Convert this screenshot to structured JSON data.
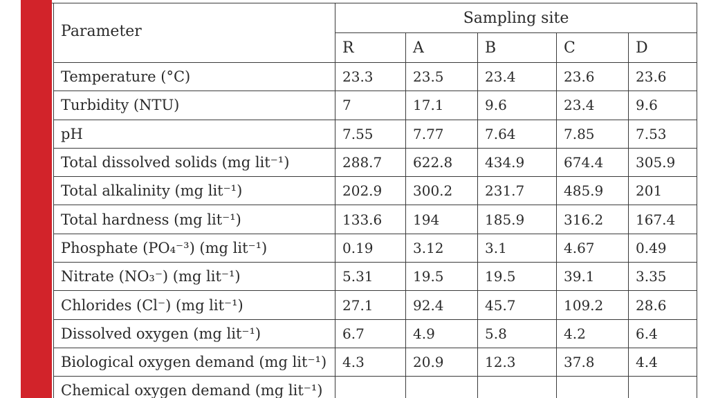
{
  "table": {
    "param_header": "Parameter",
    "sampling_header": "Sampling site",
    "sites": [
      "R",
      "A",
      "B",
      "C",
      "D"
    ],
    "rows": [
      {
        "name": "Temperature (°C)",
        "values": [
          "23.3",
          "23.5",
          "23.4",
          "23.6",
          "23.6"
        ]
      },
      {
        "name": "Turbidity (NTU)",
        "values": [
          "7",
          "17.1",
          "9.6",
          "23.4",
          "9.6"
        ]
      },
      {
        "name": "pH",
        "values": [
          "7.55",
          "7.77",
          "7.64",
          "7.85",
          "7.53"
        ]
      },
      {
        "name": "Total dissolved solids (mg lit⁻¹)",
        "values": [
          "288.7",
          "622.8",
          "434.9",
          "674.4",
          "305.9"
        ]
      },
      {
        "name": "Total alkalinity (mg lit⁻¹)",
        "values": [
          "202.9",
          "300.2",
          "231.7",
          "485.9",
          "201"
        ]
      },
      {
        "name": "Total hardness (mg lit⁻¹)",
        "values": [
          "133.6",
          "194",
          "185.9",
          "316.2",
          "167.4"
        ]
      },
      {
        "name": "Phosphate (PO₄⁻³) (mg lit⁻¹)",
        "values": [
          "0.19",
          "3.12",
          "3.1",
          "4.67",
          "0.49"
        ]
      },
      {
        "name": "Nitrate (NO₃⁻) (mg lit⁻¹)",
        "values": [
          "5.31",
          "19.5",
          "19.5",
          "39.1",
          "3.35"
        ]
      },
      {
        "name": "Chlorides (Cl⁻) (mg lit⁻¹)",
        "values": [
          "27.1",
          "92.4",
          "45.7",
          "109.2",
          "28.6"
        ]
      },
      {
        "name": "Dissolved oxygen (mg lit⁻¹)",
        "values": [
          "6.7",
          "4.9",
          "5.8",
          "4.2",
          "6.4"
        ]
      },
      {
        "name": "Biological oxygen demand (mg lit⁻¹)",
        "values": [
          "4.3",
          "20.9",
          "12.3",
          "37.8",
          "4.4"
        ]
      },
      {
        "name": "Chemical oxygen demand (mg lit⁻¹)",
        "values": [
          "",
          "",
          "",
          "",
          ""
        ]
      }
    ]
  },
  "colors": {
    "accent_bar": "#d2232a",
    "border": "#3a3a3a"
  }
}
